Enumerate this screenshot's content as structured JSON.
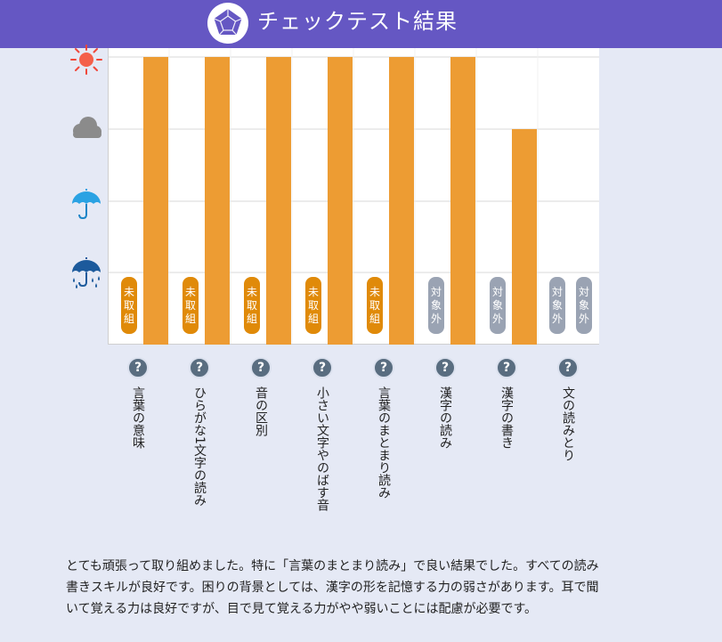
{
  "header": {
    "title": "チェックテスト結果",
    "background_color": "#6557c3",
    "logo_icon": "pentagon-logo-icon"
  },
  "scale_icons": [
    "sun-icon",
    "cloud-icon",
    "umbrella-icon",
    "heavy-rain-umbrella-icon"
  ],
  "chart_data": {
    "type": "bar",
    "categories": [
      "言葉の意味",
      "ひらがな1文字の読み",
      "音の区別",
      "小さい文字やのばす音",
      "言葉のまとまり読み",
      "漢字の読み",
      "漢字の書き",
      "文の読みとり"
    ],
    "ylim": [
      0,
      4
    ],
    "grid": true,
    "bar_color": "#ed9c33",
    "series": [
      {
        "values": [
          4,
          4,
          4,
          4,
          4,
          4,
          3,
          null
        ]
      }
    ],
    "tags": [
      [
        "未取組"
      ],
      [
        "未取組"
      ],
      [
        "未取組"
      ],
      [
        "未取組"
      ],
      [
        "未取組"
      ],
      [
        "対象外"
      ],
      [
        "対象外"
      ],
      [
        "対象外",
        "対象外"
      ]
    ],
    "tag_colors": {
      "未取組": "#e08a09",
      "対象外": "#9aa3b3"
    }
  },
  "help_icon": "help-icon",
  "summary": "とても頑張って取り組めました。特に「言葉のまとまり読み」で良い結果でした。すべての読み書きスキルが良好です。困りの背景としては、漢字の形を記憶する力の弱さがあります。耳で聞いて覚える力は良好ですが、目で見て覚える力がやや弱いことには配慮が必要です。"
}
